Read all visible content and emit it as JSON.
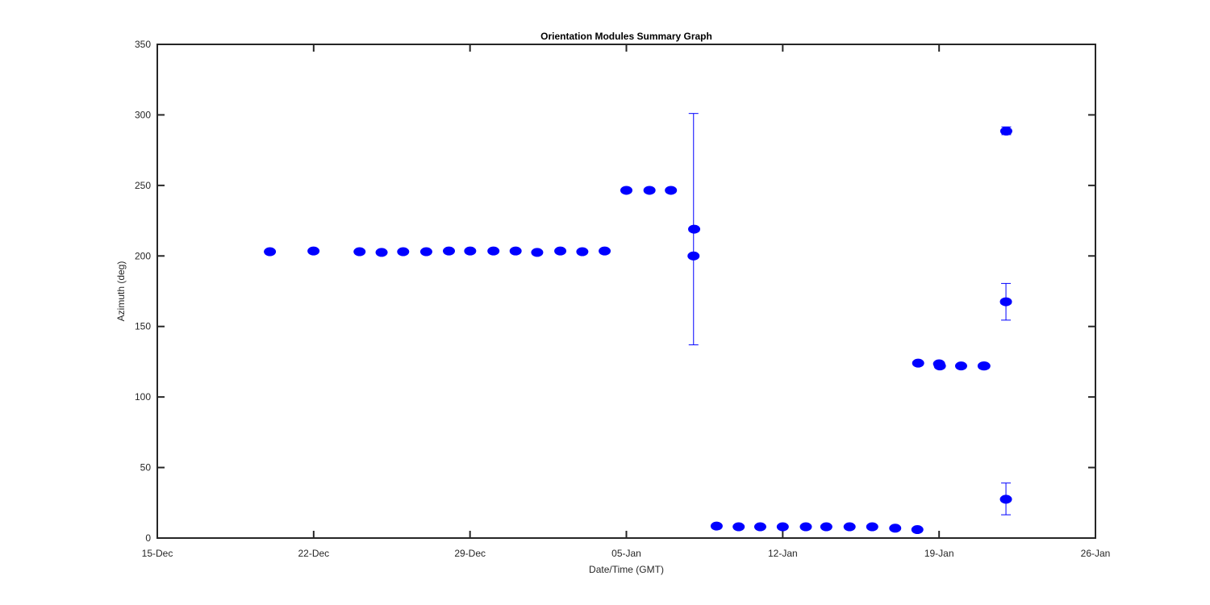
{
  "chart_data": {
    "type": "scatter",
    "title": "Orientation Modules Summary Graph",
    "xlabel": "Date/Time (GMT)",
    "ylabel": "Azimuth (deg)",
    "x_tick_labels": [
      "15-Dec",
      "22-Dec",
      "29-Dec",
      "05-Jan",
      "12-Jan",
      "19-Jan",
      "26-Jan"
    ],
    "x_tick_dates": [
      "2015-12-15",
      "2015-12-22",
      "2015-12-29",
      "2016-01-05",
      "2016-01-12",
      "2016-01-19",
      "2016-01-26"
    ],
    "xlim": [
      "2015-12-15",
      "2016-01-26"
    ],
    "y_ticks": [
      "0",
      "50",
      "100",
      "150",
      "200",
      "250",
      "300",
      "350"
    ],
    "ylim": [
      0,
      350
    ],
    "grid": false,
    "color": "#0000ff",
    "points": [
      {
        "x": "2015-12-20 01:00",
        "y": 203
      },
      {
        "x": "2015-12-21 23:50",
        "y": 203.5
      },
      {
        "x": "2015-12-24 01:20",
        "y": 203
      },
      {
        "x": "2015-12-25 01:00",
        "y": 202.5
      },
      {
        "x": "2015-12-26 00:10",
        "y": 203
      },
      {
        "x": "2015-12-27 01:00",
        "y": 203
      },
      {
        "x": "2015-12-28 01:20",
        "y": 203.5
      },
      {
        "x": "2015-12-29 00:10",
        "y": 203.5
      },
      {
        "x": "2015-12-30 01:10",
        "y": 203.5
      },
      {
        "x": "2015-12-31 01:00",
        "y": 203.5
      },
      {
        "x": "2016-01-01 00:10",
        "y": 202.5
      },
      {
        "x": "2016-01-02 01:00",
        "y": 203.5
      },
      {
        "x": "2016-01-03 00:40",
        "y": 203
      },
      {
        "x": "2016-01-04 00:40",
        "y": 203.5
      },
      {
        "x": "2016-01-05 00:00",
        "y": 246.5
      },
      {
        "x": "2016-01-06 00:50",
        "y": 246.5
      },
      {
        "x": "2016-01-06 23:50",
        "y": 246.5
      },
      {
        "x": "2016-01-08 00:10",
        "y": 200
      },
      {
        "x": "2016-01-08 00:50",
        "y": 219
      },
      {
        "x": "2016-01-09 01:00",
        "y": 8.5
      },
      {
        "x": "2016-01-10 00:40",
        "y": 8
      },
      {
        "x": "2016-01-10 23:50",
        "y": 8
      },
      {
        "x": "2016-01-12 00:00",
        "y": 8
      },
      {
        "x": "2016-01-13 00:50",
        "y": 8
      },
      {
        "x": "2016-01-13 22:50",
        "y": 8
      },
      {
        "x": "2016-01-14 23:50",
        "y": 8
      },
      {
        "x": "2016-01-16 00:10",
        "y": 8
      },
      {
        "x": "2016-01-17 00:50",
        "y": 7
      },
      {
        "x": "2016-01-18 00:40",
        "y": 6
      },
      {
        "x": "2016-01-18 01:30",
        "y": 124
      },
      {
        "x": "2016-01-19 00:00",
        "y": 123.5
      },
      {
        "x": "2016-01-19 00:50",
        "y": 122
      },
      {
        "x": "2016-01-19 23:40",
        "y": 122
      },
      {
        "x": "2016-01-20 23:50",
        "y": 122
      },
      {
        "x": "2016-01-21 00:40",
        "y": 122
      },
      {
        "x": "2016-01-21 23:50",
        "y": 167.5
      },
      {
        "x": "2016-01-21 23:50",
        "y": 27.5
      },
      {
        "x": "2016-01-22 00:10",
        "y": 288.5
      }
    ],
    "error_bars": [
      {
        "x": "2016-01-08 00:10",
        "low": 137,
        "high": 301
      },
      {
        "x": "2016-01-21 23:50",
        "low": 154.5,
        "high": 180.5
      },
      {
        "x": "2016-01-21 23:50",
        "low": 16.5,
        "high": 39
      },
      {
        "x": "2016-01-22 00:10",
        "low": 286,
        "high": 291.5
      }
    ]
  }
}
